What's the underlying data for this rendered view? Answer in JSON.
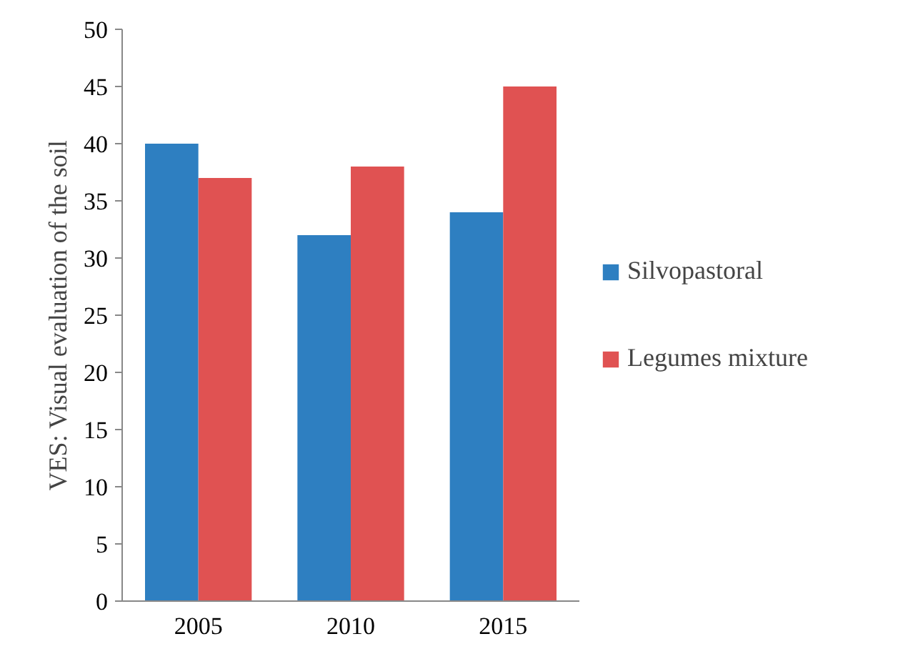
{
  "chart_data": {
    "type": "bar",
    "ylabel": "VES: Visual evaluation of the soil",
    "categories": [
      "2005",
      "2010",
      "2015"
    ],
    "series": [
      {
        "name": "Silvopastoral",
        "color": "#2e7fc1",
        "values": [
          40,
          32,
          34
        ]
      },
      {
        "name": "Legumes mixture",
        "color": "#e05252",
        "values": [
          37,
          38,
          45
        ]
      }
    ],
    "ylim": [
      0,
      50
    ],
    "yticks": [
      0,
      5,
      10,
      15,
      20,
      25,
      30,
      35,
      40,
      45,
      50
    ],
    "legend": "right"
  }
}
